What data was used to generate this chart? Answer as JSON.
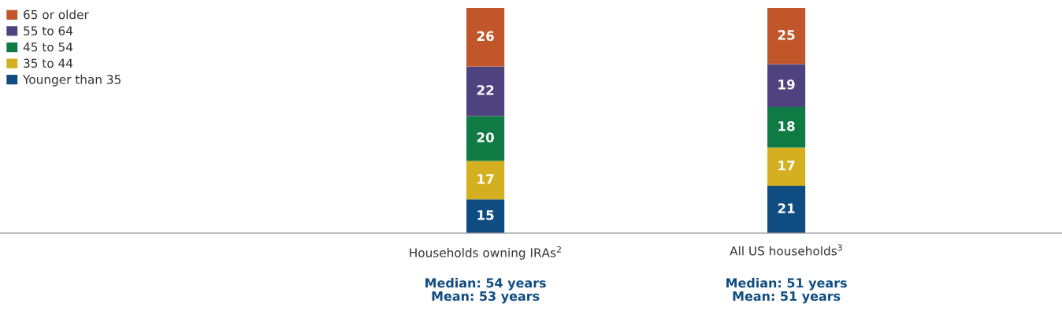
{
  "chart_data": {
    "type": "bar",
    "stacked": true,
    "categories": [
      "Households owning IRAs$^{2}$",
      "All US households$^{3}$"
    ],
    "series": [
      {
        "name": "Younger than 35",
        "color": "#0f4c81",
        "values": [
          15,
          21
        ]
      },
      {
        "name": "35 to 44",
        "color": "#d4b020",
        "values": [
          17,
          17
        ]
      },
      {
        "name": "45 to 54",
        "color": "#0f7a43",
        "values": [
          20,
          18
        ]
      },
      {
        "name": "55 to 64",
        "color": "#4f437f",
        "values": [
          22,
          19
        ]
      },
      {
        "name": "65 or older",
        "color": "#c0562a",
        "values": [
          26,
          25
        ]
      }
    ],
    "ylim": [
      0,
      100
    ],
    "data_labels": true,
    "legend": "top left",
    "grid": false,
    "tick_labels": "x",
    "annotations": [
      "Median: 54 years\nMean: 53 years",
      "Median: 51 years\nMean: 51 years"
    ]
  }
}
